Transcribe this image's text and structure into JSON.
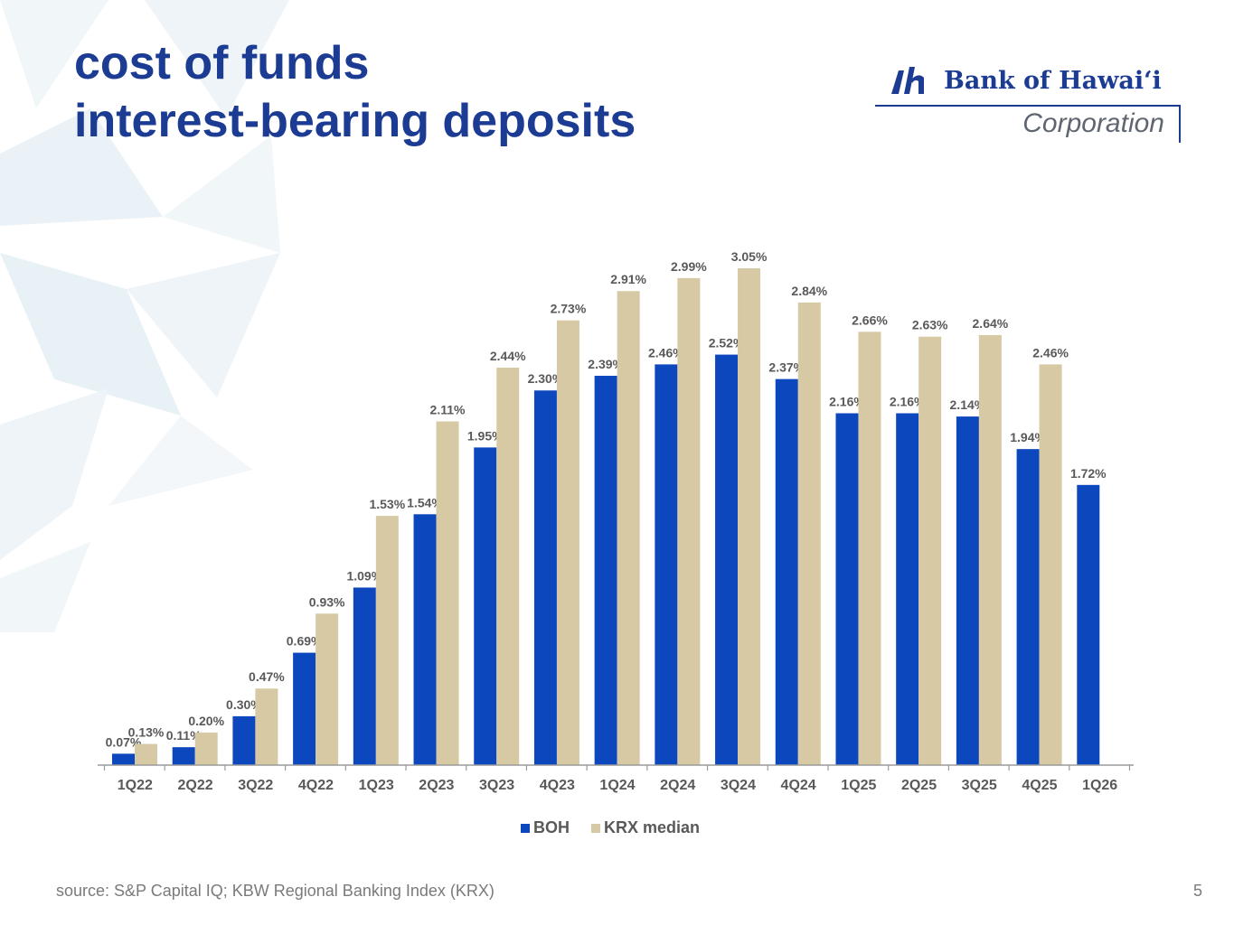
{
  "slide": {
    "title_line1": "cost of funds",
    "title_line2": "interest-bearing deposits",
    "source_note": "source: S&P Capital IQ; KBW Regional Banking Index (KRX)",
    "page_number": "5"
  },
  "logo": {
    "name": "Bank of Hawaiʻi",
    "subtitle": "Corporation"
  },
  "colors": {
    "title": "#1c3c94",
    "boh": "#0d47bd",
    "krx": "#d6c9a3",
    "label": "#595959"
  },
  "chart_data": {
    "type": "bar",
    "categories": [
      "1Q22",
      "2Q22",
      "3Q22",
      "4Q22",
      "1Q23",
      "2Q23",
      "3Q23",
      "4Q23",
      "1Q24",
      "2Q24",
      "3Q24",
      "4Q24",
      "1Q25",
      "2Q25",
      "3Q25",
      "4Q25",
      "1Q26"
    ],
    "series": [
      {
        "name": "BOH",
        "values": [
          0.07,
          0.11,
          0.3,
          0.69,
          1.09,
          1.54,
          1.95,
          2.3,
          2.39,
          2.46,
          2.52,
          2.37,
          2.16,
          2.16,
          2.14,
          1.94,
          1.72
        ]
      },
      {
        "name": "KRX median",
        "values": [
          0.13,
          0.2,
          0.47,
          0.93,
          1.53,
          2.11,
          2.44,
          2.73,
          2.91,
          2.99,
          3.05,
          2.84,
          2.66,
          2.63,
          2.64,
          2.46,
          null
        ]
      }
    ],
    "data_labels": {
      "BOH": [
        "0.07%",
        "0.11%",
        "0.30%",
        "0.69%",
        "1.09%",
        "1.54%",
        "1.95%",
        "2.30%",
        "2.39%",
        "2.46%",
        "2.52%",
        "2.37%",
        "2.16%",
        "2.16%",
        "2.14%",
        "1.94%",
        "1.72%"
      ],
      "KRX median": [
        "0.13%",
        "0.20%",
        "0.47%",
        "0.93%",
        "1.53%",
        "2.11%",
        "2.44%",
        "2.73%",
        "2.91%",
        "2.99%",
        "3.05%",
        "2.84%",
        "2.66%",
        "2.63%",
        "2.64%",
        "2.46%",
        null
      ]
    },
    "ylim": [
      0,
      3.05
    ],
    "legend_position": "bottom",
    "grid": false,
    "y_axis_visible": false
  }
}
